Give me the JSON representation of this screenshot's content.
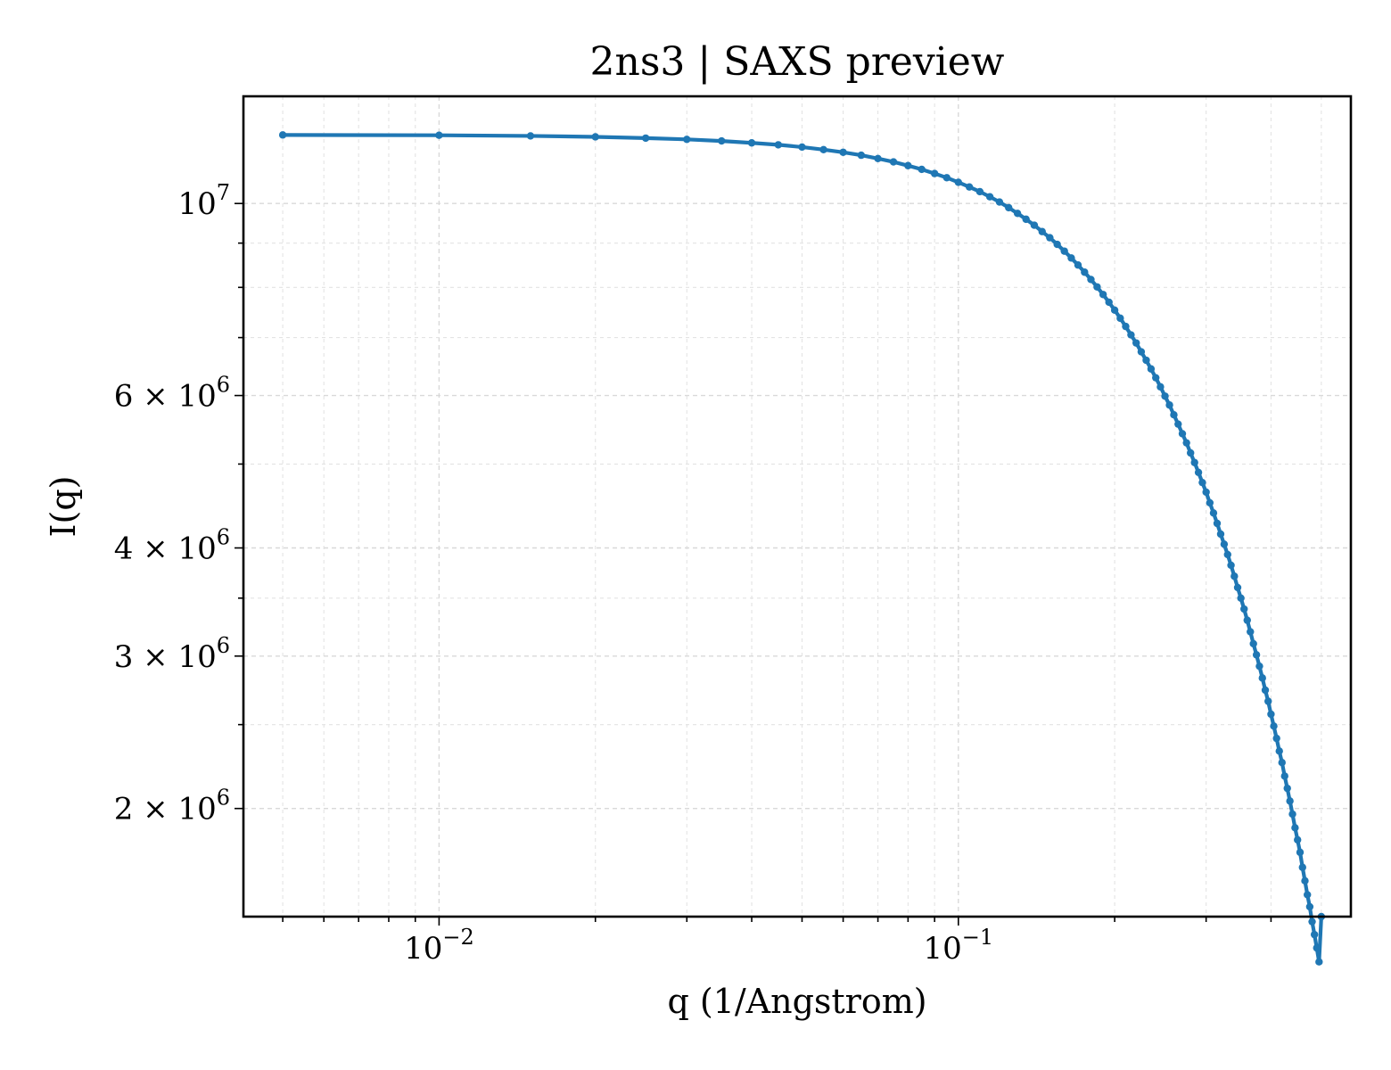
{
  "chart_data": {
    "type": "line",
    "title": "2ns3 | SAXS preview",
    "xlabel": "q (1/Angstrom)",
    "ylabel": "I(q)",
    "x_scale": "log",
    "y_scale": "log",
    "xlim": [
      0.0042,
      0.57
    ],
    "ylim": [
      1500000,
      13300000
    ],
    "x_major_ticks": [
      {
        "value": 0.01,
        "base": "10",
        "exp": "−2"
      },
      {
        "value": 0.1,
        "base": "10",
        "exp": "−1"
      }
    ],
    "y_ticks": [
      {
        "value": 10000000,
        "mant": "",
        "base": "10",
        "exp": "7"
      },
      {
        "value": 6000000,
        "mant": "6 × ",
        "base": "10",
        "exp": "6"
      },
      {
        "value": 4000000,
        "mant": "4 × ",
        "base": "10",
        "exp": "6"
      },
      {
        "value": 3000000,
        "mant": "3 × ",
        "base": "10",
        "exp": "6"
      },
      {
        "value": 2000000,
        "mant": "2 × ",
        "base": "10",
        "exp": "6"
      }
    ],
    "y_minor_ticks": [
      2500000,
      3500000,
      5000000,
      7000000,
      8000000,
      9000000
    ],
    "grid": true,
    "line_color": "#1f77b4",
    "series": [
      {
        "x": [
          0.005,
          0.01,
          0.015,
          0.02,
          0.025,
          0.03,
          0.035,
          0.04,
          0.045,
          0.05,
          0.055,
          0.06,
          0.065,
          0.07,
          0.075,
          0.08,
          0.085,
          0.09,
          0.095,
          0.1,
          0.105,
          0.11,
          0.115,
          0.12,
          0.125,
          0.13,
          0.135,
          0.14,
          0.145,
          0.15,
          0.155,
          0.16,
          0.165,
          0.17,
          0.175,
          0.18,
          0.185,
          0.19,
          0.195,
          0.2,
          0.205,
          0.21,
          0.215,
          0.22,
          0.225,
          0.23,
          0.235,
          0.24,
          0.245,
          0.25,
          0.255,
          0.26,
          0.265,
          0.27,
          0.275,
          0.28,
          0.285,
          0.29,
          0.295,
          0.3,
          0.305,
          0.31,
          0.315,
          0.32,
          0.325,
          0.33,
          0.335,
          0.34,
          0.345,
          0.35,
          0.355,
          0.36,
          0.365,
          0.37,
          0.375,
          0.38,
          0.385,
          0.39,
          0.395,
          0.4,
          0.405,
          0.41,
          0.415,
          0.42,
          0.425,
          0.43,
          0.435,
          0.44,
          0.445,
          0.45,
          0.455,
          0.46,
          0.465,
          0.47,
          0.475,
          0.48,
          0.485,
          0.49,
          0.495,
          0.5
        ],
        "y": [
          12000000,
          11990000,
          11970000,
          11940000,
          11900000,
          11860000,
          11810000,
          11750000,
          11690000,
          11620000,
          11540000,
          11460000,
          11370000,
          11270000,
          11170000,
          11060000,
          10950000,
          10830000,
          10710000,
          10580000,
          10450000,
          10320000,
          10180000,
          10040000,
          9890000,
          9740000,
          9590000,
          9440000,
          9280000,
          9130000,
          8970000,
          8810000,
          8650000,
          8490000,
          8330000,
          8170000,
          8010000,
          7850000,
          7690000,
          7530000,
          7370000,
          7210000,
          7050000,
          6900000,
          6740000,
          6590000,
          6440000,
          6290000,
          6140000,
          5990000,
          5850000,
          5700000,
          5560000,
          5420000,
          5290000,
          5150000,
          5020000,
          4890000,
          4760000,
          4640000,
          4510000,
          4390000,
          4270000,
          4150000,
          4040000,
          3930000,
          3820000,
          3710000,
          3600000,
          3500000,
          3400000,
          3300000,
          3200000,
          3100000,
          3010000,
          2920000,
          2830000,
          2740000,
          2660000,
          2570000,
          2490000,
          2410000,
          2330000,
          2260000,
          2180000,
          2110000,
          2040000,
          1970000,
          1900000,
          1840000,
          1780000,
          1710000,
          1650000,
          1590000,
          1540000,
          1480000,
          1430000,
          1380000,
          1330000,
          1500000
        ]
      }
    ]
  }
}
